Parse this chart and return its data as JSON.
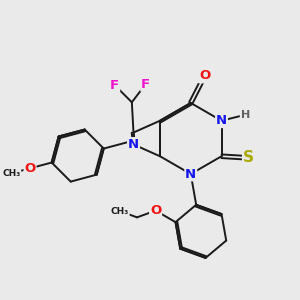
{
  "bg_color": "#EAEAEA",
  "bond_color": "#1a1a1a",
  "bond_width": 1.4,
  "dbo": 0.055,
  "atom_colors": {
    "N": "#1515EE",
    "O": "#EE1515",
    "S": "#AAAA00",
    "F": "#EE15CC",
    "H": "#606060",
    "C": "#1a1a1a"
  },
  "fs": 9.5,
  "fs_s": 8
}
